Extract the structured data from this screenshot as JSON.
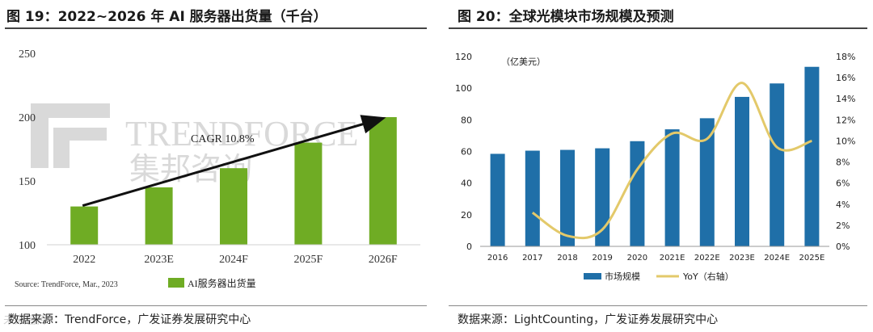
{
  "left": {
    "title": "图 19：2022~2026 年 AI 服务器出货量（千台）",
    "source": "数据来源：TrendForce，广发证券发展研究中心",
    "watermark_brand": "TRENDFORCE",
    "watermark_cn": "集邦咨询",
    "chart_data": {
      "type": "bar",
      "title": "",
      "categories": [
        "2022",
        "2023E",
        "2024F",
        "2025F",
        "2026F"
      ],
      "series": [
        {
          "name": "AI服务器出货量",
          "values": [
            130,
            145,
            160,
            180,
            200
          ]
        }
      ],
      "ylim": [
        100,
        250
      ],
      "yticks": [
        100,
        150,
        200,
        250
      ],
      "annotation": "CAGR 10.8%",
      "chart_source": "Source: TrendForce, Mar., 2023",
      "color": "#6fac24"
    }
  },
  "right": {
    "title": "图 20：全球光模块市场规模及预测",
    "source": "数据来源：LightCounting，广发证券发展研究中心",
    "unit_label": "（亿美元）",
    "chart_data": {
      "type": "bar",
      "title": "",
      "categories": [
        "2016",
        "2017",
        "2018",
        "2019",
        "2020",
        "2021E",
        "2022E",
        "2023E",
        "2024E",
        "2025E"
      ],
      "series": [
        {
          "name": "市场规模",
          "type": "bar",
          "axis": "left",
          "values": [
            58.5,
            60.5,
            61,
            62,
            66.5,
            74,
            81,
            94.5,
            103,
            113.5
          ],
          "color": "#1f6fa8"
        },
        {
          "name": "YoY",
          "legend_suffix": "（右轴）",
          "type": "line",
          "axis": "right",
          "values": [
            null,
            3.2,
            1.0,
            1.6,
            7.3,
            10.7,
            10.2,
            15.5,
            9.4,
            10.0
          ],
          "color": "#e3c96a"
        }
      ],
      "ylim_left": [
        0,
        120
      ],
      "yticks_left": [
        0,
        20,
        40,
        60,
        80,
        100,
        120
      ],
      "ylim_right": [
        0,
        18
      ],
      "yticks_right": [
        "0%",
        "2%",
        "4%",
        "6%",
        "8%",
        "10%",
        "12%",
        "14%",
        "16%",
        "18%"
      ]
    }
  },
  "page_watermark": "未来智库"
}
